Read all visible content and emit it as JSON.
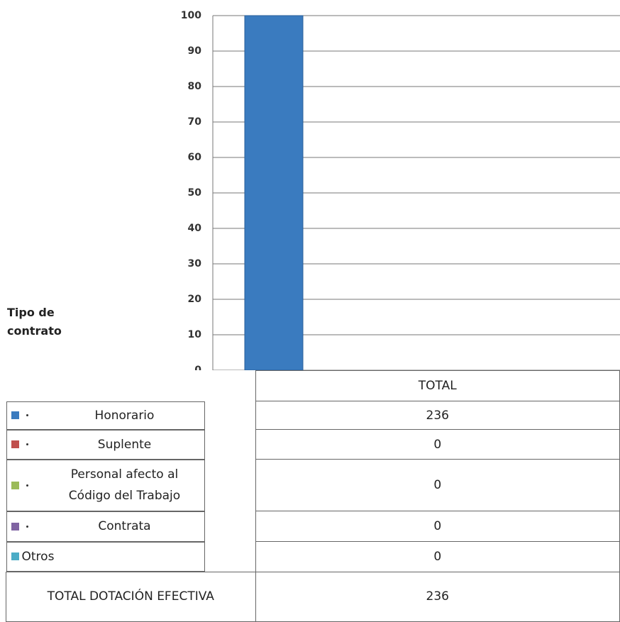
{
  "chart_data": {
    "type": "stacked_percent_bar",
    "legend_title": "Tipo de contrato",
    "categories": [
      "TOTAL"
    ],
    "series": [
      {
        "name": "Honorario",
        "color": "#3a7bbf",
        "values": [
          236
        ]
      },
      {
        "name": "Suplente",
        "color": "#c0504d",
        "values": [
          0
        ]
      },
      {
        "name": "Personal afecto al Código del Trabajo",
        "color": "#9bbb59",
        "values": [
          0
        ]
      },
      {
        "name": "Contrata",
        "color": "#8064a2",
        "values": [
          0
        ]
      },
      {
        "name": "Otros",
        "color": "#4bacc6",
        "values": [
          0
        ]
      }
    ],
    "total_row": {
      "label": "TOTAL DOTACIÓN EFECTIVA",
      "values": [
        236
      ]
    },
    "ylim": [
      0,
      100
    ],
    "yticks": [
      0,
      10,
      20,
      30,
      40,
      50,
      60,
      70,
      80,
      90,
      100
    ],
    "grid": true
  }
}
